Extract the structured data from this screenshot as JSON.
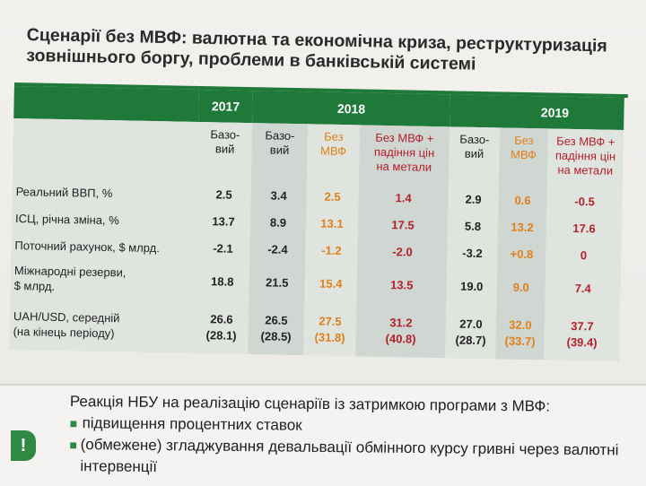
{
  "title": "Сценарії без МВФ: валютна та економічна криза, реструктуризація зовнішнього боргу, проблеми в банківській системі",
  "years": [
    "2017",
    "2018",
    "2019"
  ],
  "columns": [
    {
      "label": "Базо-\nвий",
      "color": "#222222"
    },
    {
      "label": "Базо-\nвий",
      "color": "#222222"
    },
    {
      "label": "Без\nМВФ",
      "color": "#e0801a"
    },
    {
      "label": "Без МВФ +\nпадіння цін\nна метали",
      "color": "#b21f2d"
    },
    {
      "label": "Базо-\nвий",
      "color": "#222222"
    },
    {
      "label": "Без\nМВФ",
      "color": "#e0801a"
    },
    {
      "label": "Без МВФ +\nпадіння цін\nна метали",
      "color": "#b21f2d"
    }
  ],
  "rows": [
    {
      "label": "Реальний ВВП, %",
      "values": [
        "2.5",
        "3.4",
        "2.5",
        "1.4",
        "2.9",
        "0.6",
        "-0.5"
      ]
    },
    {
      "label": "ІСЦ, річна зміна, %",
      "values": [
        "13.7",
        "8.9",
        "13.1",
        "17.5",
        "5.8",
        "13.2",
        "17.6"
      ]
    },
    {
      "label": "Поточний рахунок, $ млрд.",
      "values": [
        "-2.1",
        "-2.4",
        "-1.2",
        "-2.0",
        "-3.2",
        "+0.8",
        "0"
      ]
    },
    {
      "label": "Міжнародні резерви,\n$ млрд.",
      "values": [
        "18.8",
        "21.5",
        "15.4",
        "13.5",
        "19.0",
        "9.0",
        "7.4"
      ]
    },
    {
      "label": "UAH/USD, середній\n(на кінець періоду)",
      "values": [
        "26.6\n(28.1)",
        "26.5\n(28.5)",
        "27.5\n(31.8)",
        "31.2\n(40.8)",
        "27.0\n(28.7)",
        "32.0\n(33.7)",
        "37.7\n(39.4)"
      ]
    }
  ],
  "note": {
    "icon": "!",
    "heading": "Реакція НБУ на реалізацію сценаріїв із затримкою програми з МВФ:",
    "bullets": [
      "підвищення процентних ставок",
      "(обмежене) згладжування девальвації обмінного курсу гривні через валютні інтервенції"
    ]
  }
}
